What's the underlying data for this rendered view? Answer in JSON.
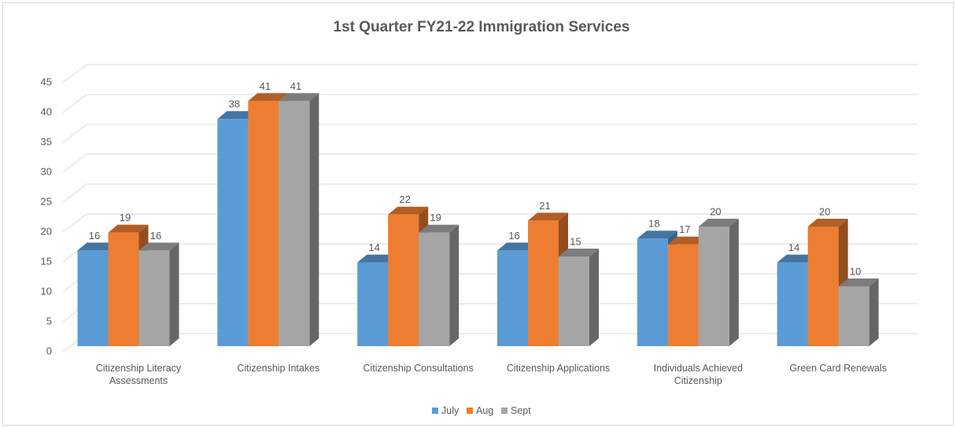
{
  "chart_data": {
    "type": "bar3d",
    "title": "1st Quarter FY21-22 Immigration Services",
    "categories": [
      "Citizenship Literacy Assessments",
      "Citizenship Intakes",
      "Citizenship Consultations",
      "Citizenship Applications",
      "Individuals Achieved Citizenship",
      "Green Card Renewals"
    ],
    "series": [
      {
        "name": "July",
        "color": "#5b9bd5",
        "values": [
          16,
          38,
          14,
          16,
          18,
          14
        ]
      },
      {
        "name": "Aug",
        "color": "#ed7d31",
        "values": [
          19,
          41,
          22,
          21,
          17,
          20
        ]
      },
      {
        "name": "Sept",
        "color": "#a5a5a5",
        "values": [
          16,
          41,
          19,
          15,
          20,
          10
        ]
      }
    ],
    "ylim": [
      0,
      45
    ],
    "yticks": [
      0,
      5,
      10,
      15,
      20,
      25,
      30,
      35,
      40,
      45
    ],
    "grid": true,
    "legend": "bottom"
  }
}
